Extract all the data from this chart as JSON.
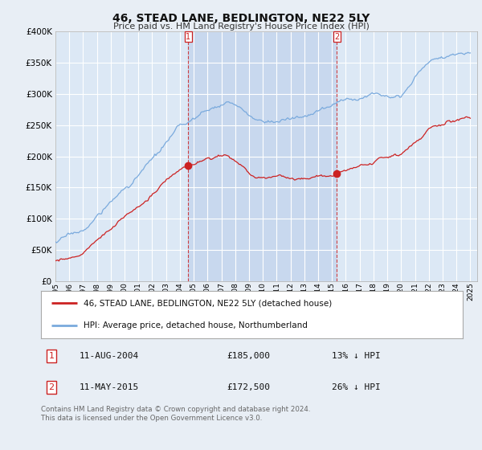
{
  "title": "46, STEAD LANE, BEDLINGTON, NE22 5LY",
  "subtitle": "Price paid vs. HM Land Registry's House Price Index (HPI)",
  "ylim": [
    0,
    400000
  ],
  "yticks": [
    0,
    50000,
    100000,
    150000,
    200000,
    250000,
    300000,
    350000,
    400000
  ],
  "ytick_labels": [
    "£0",
    "£50K",
    "£100K",
    "£150K",
    "£200K",
    "£250K",
    "£300K",
    "£350K",
    "£400K"
  ],
  "background_color": "#e8eef5",
  "plot_bg_color": "#dce8f5",
  "highlight_color": "#c8d8ee",
  "grid_color": "#ffffff",
  "hpi_color": "#7aaadd",
  "property_color": "#cc2222",
  "transaction1_date": 2004.6,
  "transaction1_price": 185000,
  "transaction2_date": 2015.36,
  "transaction2_price": 172500,
  "legend_label1": "46, STEAD LANE, BEDLINGTON, NE22 5LY (detached house)",
  "legend_label2": "HPI: Average price, detached house, Northumberland",
  "note1_num": "1",
  "note1_date": "11-AUG-2004",
  "note1_price": "£185,000",
  "note1_pct": "13% ↓ HPI",
  "note2_num": "2",
  "note2_date": "11-MAY-2015",
  "note2_price": "£172,500",
  "note2_pct": "26% ↓ HPI",
  "footer": "Contains HM Land Registry data © Crown copyright and database right 2024.\nThis data is licensed under the Open Government Licence v3.0.",
  "xmin": 1995.0,
  "xmax": 2025.5
}
